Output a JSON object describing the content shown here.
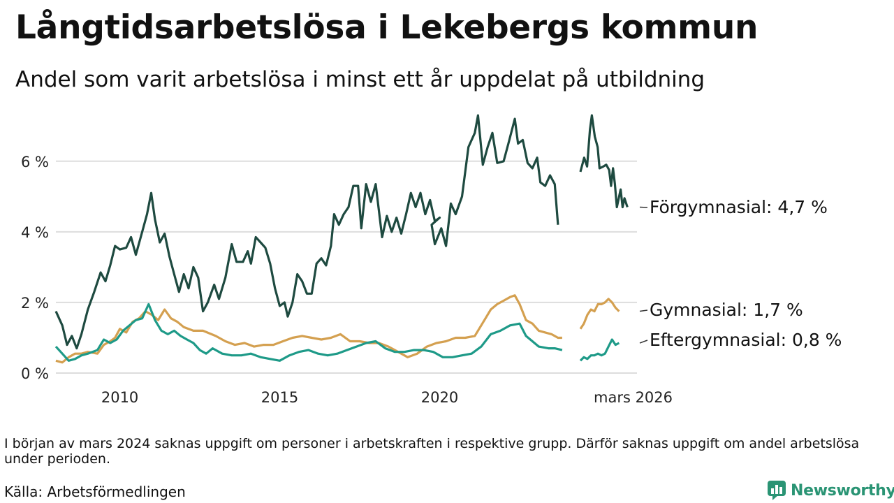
{
  "header": {
    "title": "Långtidsarbetslösa i Lekebergs kommun",
    "subtitle": "Andel som varit arbetslösa i minst ett år uppdelat på utbildning"
  },
  "footer": {
    "note": "I början av mars 2024 saknas uppgift om personer i arbetskraften i respektive grupp. Därför saknas uppgift om andel arbetslösa under perioden.",
    "source": "Källa: Arbetsförmedlingen",
    "brand": "Newsworthy"
  },
  "colors": {
    "forgymnasial": "#1e4a40",
    "gymnasial": "#d4a050",
    "eftergymnasial": "#1e9a88",
    "grid": "#dddddd",
    "brand": "#2a9474"
  },
  "chart_data": {
    "type": "line",
    "title": "Långtidsarbetslösa i Lekebergs kommun",
    "subtitle": "Andel som varit arbetslösa i minst ett år uppdelat på utbildning",
    "xlabel": "",
    "ylabel": "",
    "x_range": [
      2008.0,
      2026.17
    ],
    "ylim": [
      0,
      7.4
    ],
    "y_ticks": [
      {
        "value": 0,
        "label": "0 %"
      },
      {
        "value": 2,
        "label": "2 %"
      },
      {
        "value": 4,
        "label": "4 %"
      },
      {
        "value": 6,
        "label": "6 %"
      }
    ],
    "x_ticks": [
      {
        "value": 2010,
        "label": "2010"
      },
      {
        "value": 2015,
        "label": "2015"
      },
      {
        "value": 2020,
        "label": "2020"
      },
      {
        "value": 2026.17,
        "label": "mars 2026"
      }
    ],
    "gap": [
      2023.83,
      2024.4
    ],
    "grid": true,
    "series": [
      {
        "name": "Förgymnasial",
        "end_label": "Förgymnasial: 4,7 %",
        "color": "#1e4a40",
        "points": [
          [
            2008.0,
            1.75
          ],
          [
            2008.2,
            1.35
          ],
          [
            2008.35,
            0.8
          ],
          [
            2008.5,
            1.05
          ],
          [
            2008.65,
            0.7
          ],
          [
            2008.8,
            1.1
          ],
          [
            2009.0,
            1.8
          ],
          [
            2009.2,
            2.3
          ],
          [
            2009.4,
            2.85
          ],
          [
            2009.55,
            2.6
          ],
          [
            2009.7,
            3.05
          ],
          [
            2009.85,
            3.6
          ],
          [
            2010.0,
            3.5
          ],
          [
            2010.2,
            3.55
          ],
          [
            2010.35,
            3.85
          ],
          [
            2010.5,
            3.35
          ],
          [
            2010.7,
            4.0
          ],
          [
            2010.85,
            4.5
          ],
          [
            2010.98,
            5.1
          ],
          [
            2011.1,
            4.35
          ],
          [
            2011.25,
            3.7
          ],
          [
            2011.4,
            3.95
          ],
          [
            2011.55,
            3.3
          ],
          [
            2011.7,
            2.8
          ],
          [
            2011.85,
            2.3
          ],
          [
            2012.0,
            2.8
          ],
          [
            2012.15,
            2.4
          ],
          [
            2012.3,
            3.0
          ],
          [
            2012.45,
            2.7
          ],
          [
            2012.6,
            1.75
          ],
          [
            2012.75,
            2.0
          ],
          [
            2012.95,
            2.5
          ],
          [
            2013.1,
            2.1
          ],
          [
            2013.3,
            2.7
          ],
          [
            2013.5,
            3.65
          ],
          [
            2013.65,
            3.15
          ],
          [
            2013.85,
            3.15
          ],
          [
            2014.0,
            3.45
          ],
          [
            2014.1,
            3.1
          ],
          [
            2014.25,
            3.85
          ],
          [
            2014.4,
            3.7
          ],
          [
            2014.55,
            3.55
          ],
          [
            2014.7,
            3.1
          ],
          [
            2014.85,
            2.4
          ],
          [
            2015.0,
            1.9
          ],
          [
            2015.15,
            2.0
          ],
          [
            2015.25,
            1.6
          ],
          [
            2015.4,
            2.0
          ],
          [
            2015.55,
            2.8
          ],
          [
            2015.7,
            2.6
          ],
          [
            2015.85,
            2.25
          ],
          [
            2016.0,
            2.25
          ],
          [
            2016.15,
            3.1
          ],
          [
            2016.3,
            3.25
          ],
          [
            2016.45,
            3.05
          ],
          [
            2016.6,
            3.6
          ],
          [
            2016.7,
            4.5
          ],
          [
            2016.85,
            4.2
          ],
          [
            2017.0,
            4.5
          ],
          [
            2017.15,
            4.7
          ],
          [
            2017.3,
            5.3
          ],
          [
            2017.45,
            5.3
          ],
          [
            2017.55,
            4.1
          ],
          [
            2017.7,
            5.35
          ],
          [
            2017.85,
            4.85
          ],
          [
            2018.0,
            5.35
          ],
          [
            2018.2,
            3.85
          ],
          [
            2018.35,
            4.45
          ],
          [
            2018.5,
            4.0
          ],
          [
            2018.65,
            4.4
          ],
          [
            2018.8,
            3.95
          ],
          [
            2018.95,
            4.5
          ],
          [
            2019.1,
            5.1
          ],
          [
            2019.25,
            4.7
          ],
          [
            2019.4,
            5.1
          ],
          [
            2019.55,
            4.5
          ],
          [
            2019.7,
            4.9
          ],
          [
            2019.85,
            4.3
          ],
          [
            2020.0,
            4.4
          ],
          [
            2019.75,
            4.2
          ],
          [
            2019.85,
            3.65
          ],
          [
            2020.05,
            4.1
          ],
          [
            2020.2,
            3.6
          ],
          [
            2020.35,
            4.8
          ],
          [
            2020.5,
            4.5
          ],
          [
            2020.7,
            5.0
          ],
          [
            2020.9,
            6.4
          ],
          [
            2021.1,
            6.8
          ],
          [
            2021.2,
            7.3
          ],
          [
            2021.35,
            5.9
          ],
          [
            2021.5,
            6.4
          ],
          [
            2021.65,
            6.8
          ],
          [
            2021.8,
            5.95
          ],
          [
            2022.0,
            6.0
          ],
          [
            2022.15,
            6.5
          ],
          [
            2022.35,
            7.2
          ],
          [
            2022.45,
            6.5
          ],
          [
            2022.6,
            6.6
          ],
          [
            2022.75,
            5.95
          ],
          [
            2022.9,
            5.8
          ],
          [
            2023.05,
            6.1
          ],
          [
            2023.15,
            5.4
          ],
          [
            2023.3,
            5.3
          ],
          [
            2023.45,
            5.6
          ],
          [
            2023.6,
            5.35
          ],
          [
            2023.7,
            4.2
          ]
        ]
      },
      {
        "name": "Gymnasial",
        "end_label": "Gymnasial: 1,7 %",
        "color": "#d4a050",
        "points": [
          [
            2008.0,
            0.35
          ],
          [
            2008.2,
            0.3
          ],
          [
            2008.4,
            0.45
          ],
          [
            2008.6,
            0.55
          ],
          [
            2008.8,
            0.55
          ],
          [
            2009.0,
            0.6
          ],
          [
            2009.3,
            0.55
          ],
          [
            2009.5,
            0.8
          ],
          [
            2009.7,
            0.9
          ],
          [
            2009.85,
            1.0
          ],
          [
            2010.0,
            1.25
          ],
          [
            2010.2,
            1.15
          ],
          [
            2010.4,
            1.45
          ],
          [
            2010.6,
            1.55
          ],
          [
            2010.8,
            1.75
          ],
          [
            2011.0,
            1.65
          ],
          [
            2011.2,
            1.5
          ],
          [
            2011.4,
            1.8
          ],
          [
            2011.6,
            1.55
          ],
          [
            2011.8,
            1.45
          ],
          [
            2012.0,
            1.3
          ],
          [
            2012.3,
            1.2
          ],
          [
            2012.6,
            1.2
          ],
          [
            2013.0,
            1.05
          ],
          [
            2013.3,
            0.9
          ],
          [
            2013.6,
            0.8
          ],
          [
            2013.9,
            0.85
          ],
          [
            2014.2,
            0.75
          ],
          [
            2014.5,
            0.8
          ],
          [
            2014.8,
            0.8
          ],
          [
            2015.1,
            0.9
          ],
          [
            2015.4,
            1.0
          ],
          [
            2015.7,
            1.05
          ],
          [
            2016.0,
            1.0
          ],
          [
            2016.3,
            0.95
          ],
          [
            2016.6,
            1.0
          ],
          [
            2016.9,
            1.1
          ],
          [
            2017.2,
            0.9
          ],
          [
            2017.5,
            0.9
          ],
          [
            2017.8,
            0.85
          ],
          [
            2018.1,
            0.85
          ],
          [
            2018.4,
            0.75
          ],
          [
            2018.7,
            0.6
          ],
          [
            2019.0,
            0.45
          ],
          [
            2019.3,
            0.55
          ],
          [
            2019.6,
            0.75
          ],
          [
            2019.9,
            0.85
          ],
          [
            2020.2,
            0.9
          ],
          [
            2020.5,
            1.0
          ],
          [
            2020.8,
            1.0
          ],
          [
            2021.1,
            1.05
          ],
          [
            2021.4,
            1.5
          ],
          [
            2021.6,
            1.8
          ],
          [
            2021.8,
            1.95
          ],
          [
            2022.0,
            2.05
          ],
          [
            2022.2,
            2.15
          ],
          [
            2022.35,
            2.2
          ],
          [
            2022.5,
            1.95
          ],
          [
            2022.7,
            1.5
          ],
          [
            2022.9,
            1.4
          ],
          [
            2023.1,
            1.2
          ],
          [
            2023.3,
            1.15
          ],
          [
            2023.5,
            1.1
          ],
          [
            2023.7,
            1.0
          ],
          [
            2023.83,
            1.0
          ]
        ]
      },
      {
        "name": "Eftergymnasial",
        "end_label": "Eftergymnasial: 0,8 %",
        "color": "#1e9a88",
        "points": [
          [
            2008.0,
            0.75
          ],
          [
            2008.2,
            0.55
          ],
          [
            2008.4,
            0.35
          ],
          [
            2008.6,
            0.4
          ],
          [
            2008.8,
            0.5
          ],
          [
            2009.0,
            0.55
          ],
          [
            2009.3,
            0.65
          ],
          [
            2009.5,
            0.95
          ],
          [
            2009.7,
            0.85
          ],
          [
            2009.9,
            0.95
          ],
          [
            2010.1,
            1.2
          ],
          [
            2010.3,
            1.35
          ],
          [
            2010.5,
            1.5
          ],
          [
            2010.7,
            1.55
          ],
          [
            2010.9,
            1.95
          ],
          [
            2011.1,
            1.5
          ],
          [
            2011.3,
            1.2
          ],
          [
            2011.5,
            1.1
          ],
          [
            2011.7,
            1.2
          ],
          [
            2011.9,
            1.05
          ],
          [
            2012.1,
            0.95
          ],
          [
            2012.3,
            0.85
          ],
          [
            2012.5,
            0.65
          ],
          [
            2012.7,
            0.55
          ],
          [
            2012.9,
            0.7
          ],
          [
            2013.2,
            0.55
          ],
          [
            2013.5,
            0.5
          ],
          [
            2013.8,
            0.5
          ],
          [
            2014.1,
            0.55
          ],
          [
            2014.4,
            0.45
          ],
          [
            2014.7,
            0.4
          ],
          [
            2015.0,
            0.35
          ],
          [
            2015.3,
            0.5
          ],
          [
            2015.6,
            0.6
          ],
          [
            2015.9,
            0.65
          ],
          [
            2016.2,
            0.55
          ],
          [
            2016.5,
            0.5
          ],
          [
            2016.8,
            0.55
          ],
          [
            2017.1,
            0.65
          ],
          [
            2017.4,
            0.75
          ],
          [
            2017.7,
            0.85
          ],
          [
            2018.0,
            0.9
          ],
          [
            2018.3,
            0.7
          ],
          [
            2018.6,
            0.6
          ],
          [
            2018.9,
            0.6
          ],
          [
            2019.2,
            0.65
          ],
          [
            2019.5,
            0.65
          ],
          [
            2019.8,
            0.6
          ],
          [
            2020.1,
            0.45
          ],
          [
            2020.4,
            0.45
          ],
          [
            2020.7,
            0.5
          ],
          [
            2021.0,
            0.55
          ],
          [
            2021.3,
            0.75
          ],
          [
            2021.6,
            1.1
          ],
          [
            2021.9,
            1.2
          ],
          [
            2022.2,
            1.35
          ],
          [
            2022.5,
            1.4
          ],
          [
            2022.7,
            1.05
          ],
          [
            2022.9,
            0.9
          ],
          [
            2023.1,
            0.75
          ],
          [
            2023.4,
            0.7
          ],
          [
            2023.6,
            0.7
          ],
          [
            2023.83,
            0.65
          ]
        ]
      }
    ]
  }
}
